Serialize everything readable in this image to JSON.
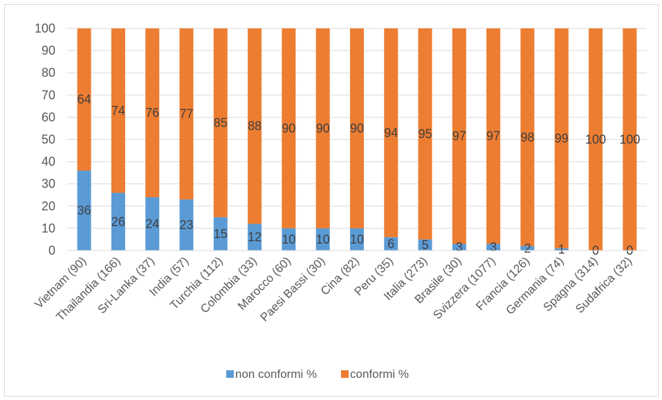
{
  "chart_data": {
    "type": "bar",
    "stacked": true,
    "percent": true,
    "categories": [
      "Vietnam (90)",
      "Thailandia (166)",
      "Sri-Lanka (37)",
      "India (57)",
      "Turchia (112)",
      "Colombia (33)",
      "Marocco (60)",
      "Paesi Bassi (30)",
      "Cina (82)",
      "Peru (35)",
      "Italia (273)",
      "Brasile (30)",
      "Svizzera (1077)",
      "Francia (126)",
      "Germania (74)",
      "Spagna (314)",
      "Sudafrica (32)"
    ],
    "series": [
      {
        "name": "non conformi %",
        "color": "#5b9bd5",
        "values": [
          36,
          26,
          24,
          23,
          15,
          12,
          10,
          10,
          10,
          6,
          5,
          3,
          3,
          2,
          1,
          0,
          0
        ],
        "labels": [
          "36",
          "26",
          "24",
          "23",
          "15",
          "12",
          "10",
          "10",
          "10",
          "6",
          "5",
          "3",
          "3",
          "2",
          "1",
          "0",
          "0"
        ]
      },
      {
        "name": "conformi %",
        "color": "#ed7d31",
        "values": [
          64,
          74,
          76,
          77,
          85,
          88,
          90,
          90,
          90,
          94,
          95,
          97,
          97,
          98,
          99,
          100,
          100
        ],
        "labels": [
          "64",
          "74",
          "76",
          "77",
          "85",
          "88",
          "90",
          "90",
          "90",
          "94",
          "95",
          "97",
          "97",
          "98",
          "99",
          "100",
          "100"
        ]
      }
    ],
    "yticks": [
      "0",
      "10",
      "20",
      "30",
      "40",
      "50",
      "60",
      "70",
      "80",
      "90",
      "100"
    ],
    "ylim": [
      0,
      100
    ],
    "grid": true,
    "legend_position": "bottom",
    "title": "",
    "xlabel": "",
    "ylabel": ""
  }
}
